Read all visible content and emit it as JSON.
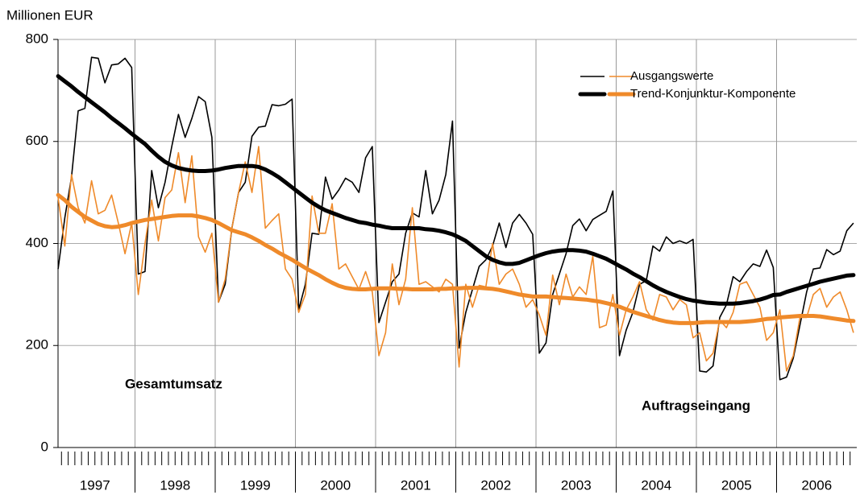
{
  "chart_data": {
    "type": "line",
    "y_label": "Millionen EUR",
    "ylim": [
      0,
      800
    ],
    "yticks": [
      0,
      200,
      400,
      600,
      800
    ],
    "grid": true,
    "years": [
      "1997",
      "1998",
      "1999",
      "2000",
      "2001",
      "2002",
      "2003",
      "2004",
      "2005",
      "2006"
    ],
    "legend": [
      "Ausgangswerte",
      "Trend-Konjunktur-Komponente"
    ],
    "groups": [
      {
        "label": "Gesamtumsatz",
        "color": "#000000",
        "raw": [
          350,
          450,
          530,
          660,
          665,
          765,
          763,
          715,
          750,
          752,
          763,
          745,
          340,
          345,
          543,
          470,
          520,
          590,
          653,
          608,
          645,
          688,
          678,
          608,
          285,
          320,
          430,
          500,
          520,
          610,
          628,
          630,
          672,
          670,
          673,
          683,
          270,
          320,
          420,
          418,
          530,
          487,
          505,
          528,
          520,
          500,
          568,
          590,
          245,
          285,
          325,
          340,
          420,
          460,
          452,
          543,
          458,
          485,
          535,
          640,
          195,
          265,
          310,
          355,
          368,
          395,
          440,
          392,
          440,
          457,
          440,
          418,
          185,
          205,
          300,
          340,
          380,
          435,
          448,
          425,
          447,
          455,
          463,
          503,
          180,
          230,
          265,
          320,
          327,
          395,
          385,
          413,
          400,
          405,
          400,
          408,
          150,
          148,
          160,
          255,
          280,
          335,
          325,
          345,
          360,
          355,
          387,
          353,
          133,
          138,
          175,
          240,
          305,
          350,
          352,
          388,
          378,
          385,
          425,
          440
        ],
        "trend": [
          728,
          718,
          708,
          697,
          687,
          677,
          667,
          657,
          646,
          636,
          626,
          615,
          605,
          595,
          582,
          570,
          560,
          553,
          548,
          545,
          543,
          542,
          542,
          543,
          545,
          548,
          550,
          552,
          552,
          552,
          550,
          545,
          538,
          530,
          520,
          510,
          500,
          490,
          480,
          472,
          465,
          460,
          455,
          450,
          446,
          442,
          440,
          437,
          435,
          432,
          430,
          430,
          430,
          430,
          430,
          428,
          427,
          425,
          422,
          418,
          412,
          405,
          395,
          385,
          375,
          368,
          363,
          360,
          360,
          362,
          367,
          372,
          377,
          381,
          384,
          386,
          387,
          387,
          386,
          384,
          380,
          375,
          370,
          363,
          356,
          349,
          341,
          334,
          326,
          318,
          311,
          305,
          300,
          295,
          291,
          288,
          286,
          284,
          283,
          282,
          282,
          282,
          283,
          285,
          287,
          290,
          294,
          299,
          300,
          305,
          309,
          313,
          317,
          321,
          325,
          328,
          331,
          334,
          337,
          338
        ]
      },
      {
        "label": "Auftragseingang",
        "color": "#ef8a2a",
        "raw": [
          490,
          395,
          535,
          470,
          440,
          523,
          458,
          465,
          495,
          440,
          380,
          440,
          300,
          400,
          485,
          405,
          490,
          505,
          578,
          480,
          572,
          413,
          383,
          420,
          285,
          330,
          430,
          500,
          560,
          500,
          590,
          430,
          445,
          458,
          350,
          330,
          265,
          300,
          493,
          420,
          420,
          478,
          350,
          360,
          335,
          310,
          345,
          305,
          180,
          225,
          360,
          280,
          330,
          470,
          320,
          325,
          315,
          305,
          330,
          320,
          158,
          320,
          275,
          318,
          315,
          400,
          320,
          340,
          350,
          320,
          275,
          290,
          260,
          220,
          338,
          280,
          340,
          295,
          315,
          300,
          375,
          235,
          240,
          300,
          220,
          270,
          295,
          325,
          270,
          250,
          300,
          295,
          270,
          290,
          280,
          215,
          225,
          170,
          185,
          250,
          235,
          265,
          320,
          325,
          300,
          275,
          210,
          225,
          270,
          150,
          180,
          255,
          255,
          300,
          312,
          275,
          295,
          305,
          270,
          225
        ],
        "trend": [
          495,
          485,
          472,
          462,
          452,
          445,
          438,
          434,
          432,
          433,
          436,
          440,
          443,
          446,
          448,
          450,
          452,
          454,
          455,
          455,
          455,
          453,
          450,
          446,
          440,
          433,
          426,
          422,
          418,
          412,
          405,
          397,
          390,
          382,
          375,
          368,
          360,
          352,
          345,
          338,
          330,
          323,
          317,
          313,
          311,
          310,
          310,
          311,
          312,
          312,
          312,
          311,
          311,
          310,
          310,
          310,
          310,
          311,
          311,
          312,
          312,
          313,
          313,
          313,
          312,
          311,
          309,
          306,
          303,
          300,
          298,
          296,
          296,
          296,
          295,
          294,
          293,
          292,
          291,
          290,
          288,
          286,
          283,
          280,
          276,
          271,
          266,
          262,
          258,
          254,
          250,
          247,
          245,
          244,
          244,
          244,
          245,
          246,
          246,
          246,
          246,
          246,
          246,
          247,
          248,
          250,
          252,
          253,
          255,
          256,
          257,
          258,
          258,
          258,
          257,
          255,
          253,
          251,
          249,
          248
        ]
      }
    ]
  }
}
